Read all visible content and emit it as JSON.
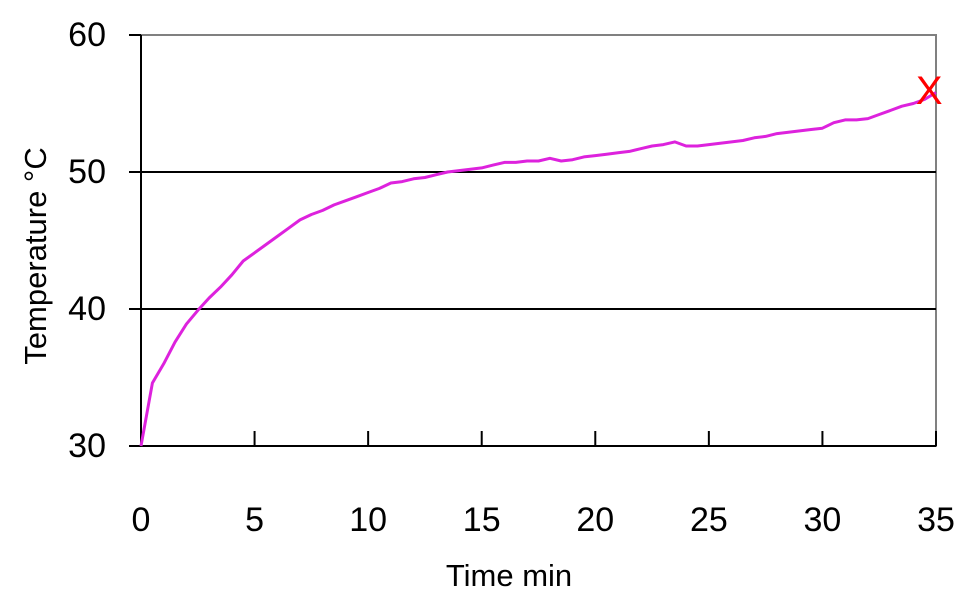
{
  "chart_data": {
    "type": "line",
    "xlabel": "Time min",
    "ylabel": "Temperature °C",
    "xlim": [
      0,
      35
    ],
    "ylim": [
      30,
      60
    ],
    "xticks": [
      "0",
      "5",
      "10",
      "15",
      "20",
      "25",
      "30",
      "35"
    ],
    "yticks": [
      "30",
      "40",
      "50",
      "60"
    ],
    "gridlines_y": [
      40,
      50
    ],
    "colors": {
      "line": "#dd22dd",
      "marker": "#ff0000",
      "grid": "#000000"
    },
    "series": [
      {
        "x": [
          0,
          0.5,
          1,
          1.5,
          2,
          2.5,
          3,
          3.5,
          4,
          4.5,
          5,
          5.5,
          6,
          6.5,
          7,
          7.5,
          8,
          8.5,
          9,
          9.5,
          10,
          10.5,
          11,
          11.5,
          12,
          12.5,
          13,
          13.5,
          14,
          14.5,
          15,
          15.5,
          16,
          16.5,
          17,
          17.5,
          18,
          18.5,
          19,
          19.5,
          20,
          20.5,
          21,
          21.5,
          22,
          22.5,
          23,
          23.5,
          24,
          24.5,
          25,
          25.5,
          26,
          26.5,
          27,
          27.5,
          28,
          28.5,
          29,
          29.5,
          30,
          30.5,
          31,
          31.5,
          32,
          32.5,
          33,
          33.5,
          34,
          34.5,
          35
        ],
        "values": [
          30.0,
          34.6,
          36.0,
          37.6,
          38.9,
          39.9,
          40.8,
          41.6,
          42.5,
          43.5,
          44.1,
          44.7,
          45.3,
          45.9,
          46.5,
          46.9,
          47.2,
          47.6,
          47.9,
          48.2,
          48.5,
          48.8,
          49.2,
          49.3,
          49.5,
          49.6,
          49.8,
          50.0,
          50.1,
          50.2,
          50.3,
          50.5,
          50.7,
          50.7,
          50.8,
          50.8,
          51.0,
          50.8,
          50.9,
          51.1,
          51.2,
          51.3,
          51.4,
          51.5,
          51.7,
          51.9,
          52.0,
          52.2,
          51.9,
          51.9,
          52.0,
          52.1,
          52.2,
          52.3,
          52.5,
          52.6,
          52.8,
          52.9,
          53.0,
          53.1,
          53.2,
          53.6,
          53.8,
          53.8,
          53.9,
          54.2,
          54.5,
          54.8,
          55.0,
          55.3,
          55.8
        ]
      }
    ],
    "end_marker": {
      "label": "X",
      "x": 34.7,
      "y": 55.9
    }
  }
}
